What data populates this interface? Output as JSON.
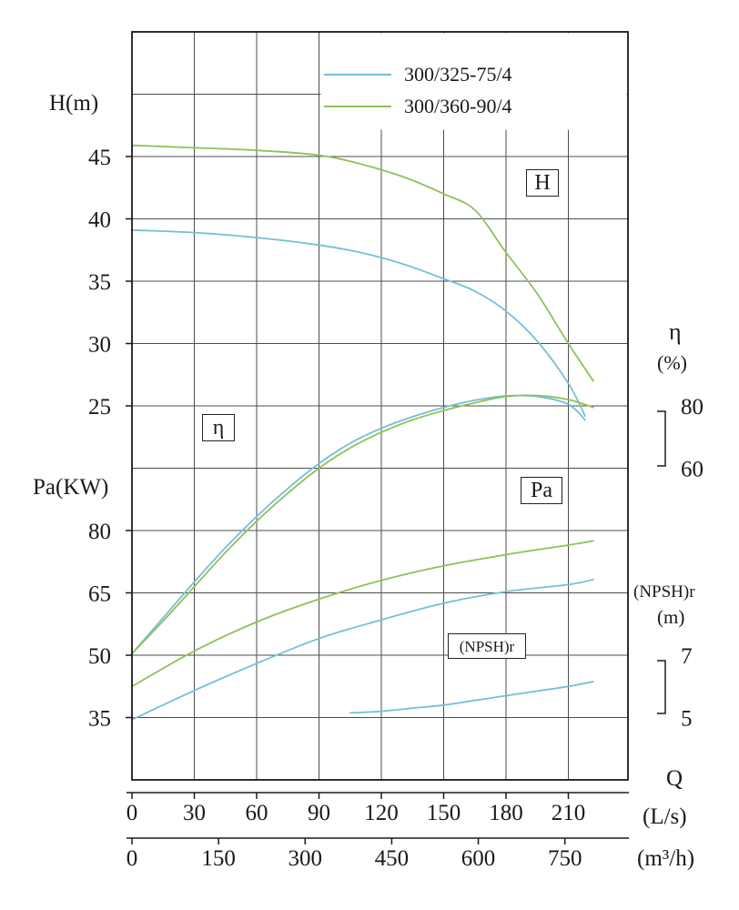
{
  "titles": {
    "h": "H(m)",
    "pa": "Pa(KW)",
    "eta": "η",
    "eta_unit": "(%)",
    "npsh": "(NPSH)r",
    "npsh_unit": "(m)",
    "q": "Q",
    "q_unit_ls": "(L/s)",
    "q_unit_m3h": "(m³/h)"
  },
  "curve_labels": {
    "h": "H",
    "eta": "η",
    "pa": "Pa",
    "npsh": "(NPSH)r"
  },
  "legend": {
    "items": [
      {
        "label": "300/325-75/4",
        "color": "#74bfd8"
      },
      {
        "label": "300/360-90/4",
        "color": "#8fc158"
      }
    ]
  },
  "colors": {
    "grid": "#4d4d4d",
    "ink": "#1a1a1a",
    "background": "#ffffff"
  },
  "chart_data": {
    "type": "line",
    "title": "Pump performance curves 300/325-75/4 and 300/360-90/4",
    "x": {
      "label": "Q",
      "primary_unit": "L/s",
      "secondary_unit": "m³/h",
      "ticks_ls": [
        0,
        30,
        60,
        90,
        120,
        150,
        180,
        210
      ],
      "ticks_m3h": [
        0,
        150,
        300,
        450,
        600,
        750
      ],
      "range_ls": [
        0,
        239
      ]
    },
    "y_axes": [
      {
        "id": "H",
        "label": "H(m)",
        "side": "left",
        "ticks": [
          45,
          40,
          35,
          30,
          25
        ]
      },
      {
        "id": "Pa",
        "label": "Pa(KW)",
        "side": "left",
        "ticks": [
          80,
          65,
          50,
          35
        ]
      },
      {
        "id": "eta",
        "label": "η(%)",
        "side": "right",
        "ticks": [
          80,
          60
        ]
      },
      {
        "id": "NPSH",
        "label": "(NPSH)r(m)",
        "side": "right",
        "ticks": [
          7,
          5
        ]
      }
    ],
    "series": [
      {
        "model": "300/325-75/4",
        "quantity": "H",
        "unit": "m",
        "color": "#74bfd8",
        "points": [
          [
            0,
            39.1
          ],
          [
            30,
            38.9
          ],
          [
            60,
            38.5
          ],
          [
            90,
            37.9
          ],
          [
            110,
            37.3
          ],
          [
            130,
            36.4
          ],
          [
            150,
            35.2
          ],
          [
            165,
            34.2
          ],
          [
            180,
            32.6
          ],
          [
            195,
            30.2
          ],
          [
            210,
            26.8
          ],
          [
            218,
            24.2
          ]
        ]
      },
      {
        "model": "300/360-90/4",
        "quantity": "H",
        "unit": "m",
        "color": "#8fc158",
        "points": [
          [
            0,
            45.9
          ],
          [
            30,
            45.7
          ],
          [
            60,
            45.5
          ],
          [
            90,
            45.1
          ],
          [
            110,
            44.4
          ],
          [
            130,
            43.4
          ],
          [
            150,
            42.0
          ],
          [
            165,
            40.7
          ],
          [
            180,
            37.3
          ],
          [
            195,
            34.0
          ],
          [
            210,
            30.0
          ],
          [
            222,
            27.0
          ]
        ]
      },
      {
        "model": "300/325-75/4",
        "quantity": "eta",
        "unit": "%",
        "color": "#74bfd8",
        "points": [
          [
            0,
            0.5
          ],
          [
            15,
            12
          ],
          [
            30,
            23.5
          ],
          [
            45,
            34.5
          ],
          [
            60,
            44.5
          ],
          [
            75,
            53.5
          ],
          [
            90,
            61.5
          ],
          [
            105,
            68
          ],
          [
            120,
            72.8
          ],
          [
            135,
            76.5
          ],
          [
            150,
            79.5
          ],
          [
            165,
            81.8
          ],
          [
            180,
            83.2
          ],
          [
            195,
            83.0
          ],
          [
            210,
            80.5
          ],
          [
            218,
            75.5
          ]
        ]
      },
      {
        "model": "300/360-90/4",
        "quantity": "eta",
        "unit": "%",
        "color": "#8fc158",
        "points": [
          [
            0,
            0.5
          ],
          [
            15,
            11
          ],
          [
            30,
            22
          ],
          [
            45,
            33
          ],
          [
            60,
            43
          ],
          [
            75,
            52
          ],
          [
            90,
            60
          ],
          [
            105,
            66.5
          ],
          [
            120,
            71.5
          ],
          [
            135,
            75.5
          ],
          [
            150,
            78.5
          ],
          [
            165,
            81
          ],
          [
            180,
            83.0
          ],
          [
            195,
            83.3
          ],
          [
            210,
            82
          ],
          [
            222,
            79.5
          ]
        ]
      },
      {
        "model": "300/325-75/4",
        "quantity": "Pa",
        "unit": "KW",
        "color": "#74bfd8",
        "points": [
          [
            0,
            34.5
          ],
          [
            30,
            41.5
          ],
          [
            60,
            48
          ],
          [
            90,
            54
          ],
          [
            120,
            58.5
          ],
          [
            150,
            62.5
          ],
          [
            180,
            65.3
          ],
          [
            210,
            67
          ],
          [
            222,
            68.2
          ]
        ]
      },
      {
        "model": "300/360-90/4",
        "quantity": "Pa",
        "unit": "KW",
        "color": "#8fc158",
        "points": [
          [
            0,
            42.5
          ],
          [
            30,
            51
          ],
          [
            60,
            58
          ],
          [
            90,
            63.5
          ],
          [
            120,
            68
          ],
          [
            150,
            71.5
          ],
          [
            180,
            74.2
          ],
          [
            210,
            76.5
          ],
          [
            222,
            77.5
          ]
        ]
      },
      {
        "model": "300/325-75/4",
        "quantity": "NPSH",
        "unit": "m",
        "color": "#74bfd8",
        "points": [
          [
            105,
            5.15
          ],
          [
            120,
            5.2
          ],
          [
            135,
            5.3
          ],
          [
            150,
            5.4
          ],
          [
            165,
            5.55
          ],
          [
            180,
            5.7
          ],
          [
            195,
            5.85
          ],
          [
            210,
            6.0
          ],
          [
            222,
            6.15
          ]
        ]
      }
    ]
  }
}
